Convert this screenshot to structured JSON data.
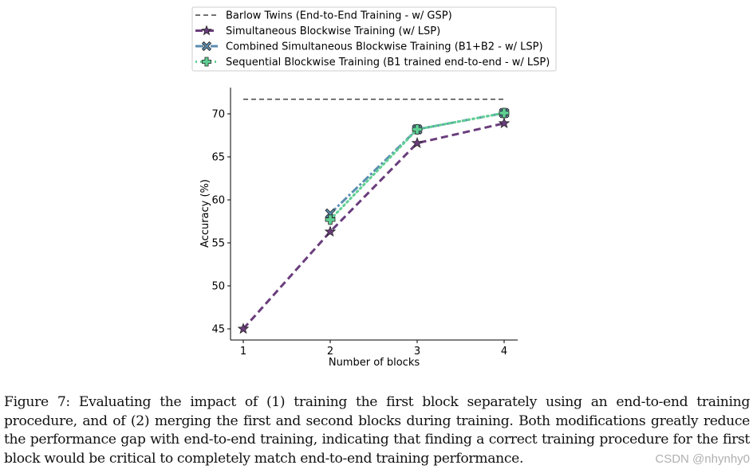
{
  "chart_data": {
    "type": "line",
    "title": "",
    "xlabel": "Number of blocks",
    "ylabel": "Accuracy (%)",
    "x": [
      1,
      2,
      3,
      4
    ],
    "xticks": [
      "1",
      "2",
      "3",
      "4"
    ],
    "yticks": [
      "45",
      "50",
      "55",
      "60",
      "65",
      "70"
    ],
    "ylim": [
      44.3,
      72.9
    ],
    "xlim": [
      0.85,
      4.15
    ],
    "grid": false,
    "legend_position": "above plot",
    "series": [
      {
        "name": "Barlow Twins (End-to-End Training - w/ GSP)",
        "x": [
          1,
          4
        ],
        "values": [
          71.7,
          71.7
        ],
        "color": "#444444",
        "style": "dashed",
        "marker": "none"
      },
      {
        "name": "Simultaneous Blockwise Training (w/ LSP)",
        "x": [
          1,
          2,
          3,
          4
        ],
        "values": [
          45.0,
          56.3,
          66.6,
          68.9
        ],
        "color": "#6a3d7c",
        "style": "dashed",
        "marker": "star"
      },
      {
        "name": "Combined Simultaneous Blockwise Training (B1+B2 - w/ LSP)",
        "x": [
          2,
          3,
          4
        ],
        "values": [
          58.4,
          68.2,
          70.1
        ],
        "color": "#5b8db0",
        "style": "dashdot",
        "marker": "X"
      },
      {
        "name": "Sequential Blockwise Training (B1 trained end-to-end - w/ LSP)",
        "x": [
          2,
          3,
          4
        ],
        "values": [
          57.7,
          68.2,
          70.1
        ],
        "color": "#5fcf93",
        "style": "dotted",
        "marker": "P"
      }
    ]
  },
  "caption": "Figure 7: Evaluating the impact of (1) training the first block separately using an end-to-end training procedure, and of (2) merging the first and second blocks during training. Both modifications greatly reduce the performance gap with end-to-end training, indicating that finding a correct training procedure for the first block would be critical to completely match end-to-end training performance.",
  "watermark": "CSDN @nhynhy0"
}
